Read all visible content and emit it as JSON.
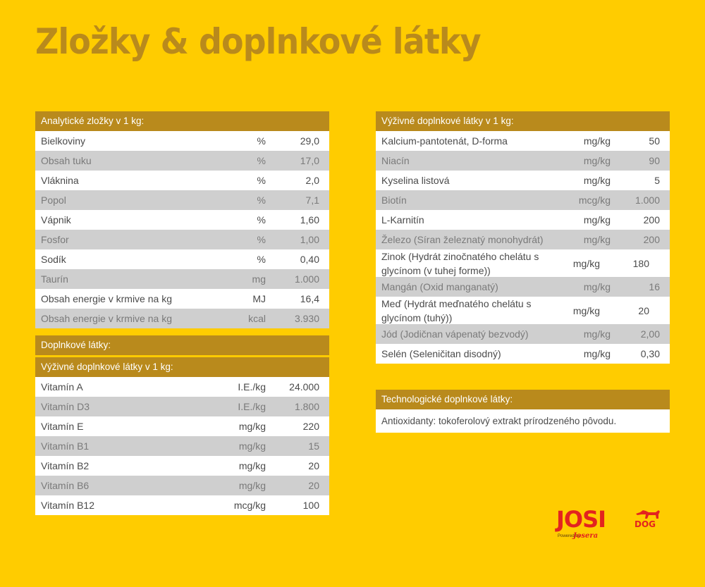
{
  "title": "Zložky & doplnkové látky",
  "analytical": {
    "header": "Analytické zložky v 1 kg:",
    "rows": [
      {
        "name": "Bielkoviny",
        "unit": "%",
        "value": "29,0"
      },
      {
        "name": "Obsah tuku",
        "unit": "%",
        "value": "17,0"
      },
      {
        "name": "Vláknina",
        "unit": "%",
        "value": "2,0"
      },
      {
        "name": "Popol",
        "unit": "%",
        "value": "7,1"
      },
      {
        "name": "Vápnik",
        "unit": "%",
        "value": "1,60"
      },
      {
        "name": "Fosfor",
        "unit": "%",
        "value": "1,00"
      },
      {
        "name": "Sodík",
        "unit": "%",
        "value": "0,40"
      },
      {
        "name": "Taurín",
        "unit": "mg",
        "value": "1.000"
      },
      {
        "name": "Obsah energie v krmive na kg",
        "unit": "MJ",
        "value": "16,4"
      },
      {
        "name": "Obsah energie v krmive na kg",
        "unit": "kcal",
        "value": "3.930"
      }
    ]
  },
  "additives": {
    "header": "Doplnkové látky:",
    "subheader": "Výživné doplnkové látky v 1 kg:",
    "rows": [
      {
        "name": "Vitamín A",
        "unit": "I.E./kg",
        "value": "24.000"
      },
      {
        "name": "Vitamín D3",
        "unit": "I.E./kg",
        "value": "1.800"
      },
      {
        "name": "Vitamín E",
        "unit": "mg/kg",
        "value": "220"
      },
      {
        "name": "Vitamín B1",
        "unit": "mg/kg",
        "value": "15"
      },
      {
        "name": "Vitamín B2",
        "unit": "mg/kg",
        "value": "20"
      },
      {
        "name": "Vitamín B6",
        "unit": "mg/kg",
        "value": "20"
      },
      {
        "name": "Vitamín B12",
        "unit": "mcg/kg",
        "value": "100"
      }
    ]
  },
  "nutritional": {
    "header": "Výživné doplnkové látky v 1 kg:",
    "rows": [
      {
        "name": "Kalcium-pantotenát, D-forma",
        "unit": "mg/kg",
        "value": "50"
      },
      {
        "name": "Niacín",
        "unit": "mg/kg",
        "value": "90"
      },
      {
        "name": "Kyselina listová",
        "unit": "mg/kg",
        "value": "5"
      },
      {
        "name": "Biotín",
        "unit": "mcg/kg",
        "value": "1.000"
      },
      {
        "name": "L-Karnitín",
        "unit": "mg/kg",
        "value": "200"
      },
      {
        "name": "Železo (Síran železnatý monohydrát)",
        "unit": "mg/kg",
        "value": "200"
      },
      {
        "name": "Zinok (Hydrát zinočnatého chelátu s glycínom (v tuhej forme))",
        "unit": "mg/kg",
        "value": "180"
      },
      {
        "name": "Mangán (Oxid manganatý)",
        "unit": "mg/kg",
        "value": "16"
      },
      {
        "name": "Meď (Hydrát meďnatého chelátu s glycínom (tuhý))",
        "unit": "mg/kg",
        "value": "20"
      },
      {
        "name": "Jód (Jodičnan vápenatý bezvodý)",
        "unit": "mg/kg",
        "value": "2,00"
      },
      {
        "name": "Selén (Seleničitan disodný)",
        "unit": "mg/kg",
        "value": "0,30"
      }
    ]
  },
  "technological": {
    "header": "Technologické doplnkové látky:",
    "text": "Antioxidanty: tokoferolový extrakt prírodzeného pôvodu."
  },
  "logo": {
    "josi": "JOSI",
    "dog": "DOG",
    "powered": "Powered by",
    "brand": "Josera"
  },
  "colors": {
    "background": "#ffcc00",
    "header": "#b98a1c",
    "row_white": "#ffffff",
    "row_gray": "#cfcfcf",
    "logo_red": "#e3231f"
  }
}
